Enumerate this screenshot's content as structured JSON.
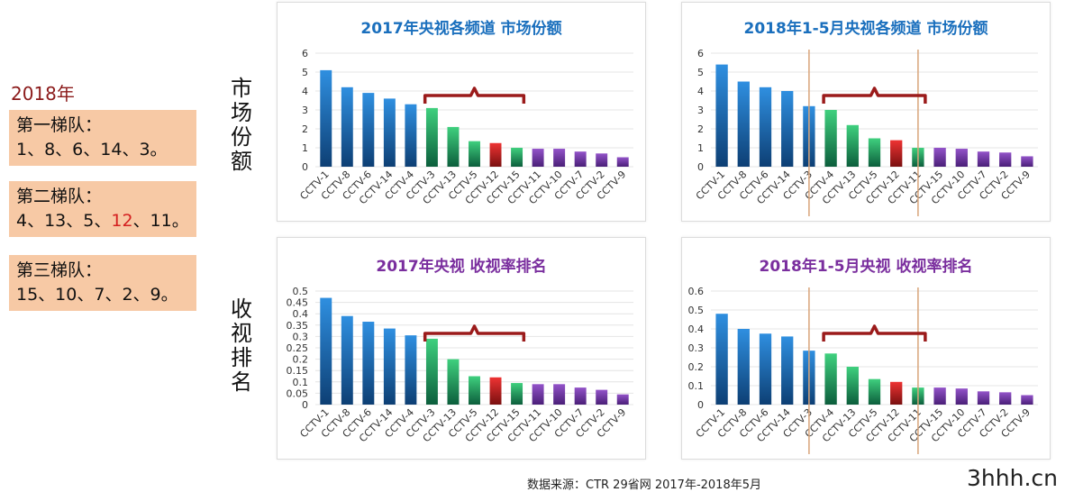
{
  "left": {
    "year": "2018年",
    "tiers": [
      {
        "title": "第一梯队：",
        "parts": [
          {
            "t": "1、8、6、14、3。"
          }
        ]
      },
      {
        "title": "第二梯队：",
        "parts": [
          {
            "t": "4、13、5、"
          },
          {
            "t": "12",
            "red": true
          },
          {
            "t": "、11。"
          }
        ]
      },
      {
        "title": "第三梯队：",
        "parts": [
          {
            "t": "15、10、7、2、9。"
          }
        ]
      }
    ],
    "row_labels": {
      "top": "市场份额",
      "bottom": "收视排名"
    }
  },
  "source_note": "数据来源：CTR 29省网  2017年-2018年5月",
  "watermark": "3hhh.cn",
  "colors": {
    "blue": "#1a6fbd",
    "green": "#27b36a",
    "red": "#d02424",
    "purple": "#7c3fb0",
    "bracket": "#9b1b1b",
    "divider": "#d9a57a",
    "title_blue": "#1a6fbd",
    "title_purple": "#7a2e9e"
  },
  "chart_data": [
    {
      "type": "bar",
      "title": "2017年央视各频道 市场份额",
      "title_color": "blue",
      "categories": [
        "CCTV-1",
        "CCTV-8",
        "CCTV-6",
        "CCTV-14",
        "CCTV-4",
        "CCTV-3",
        "CCTV-13",
        "CCTV-5",
        "CCTV-12",
        "CCTV-15",
        "CCTV-11",
        "CCTV-10",
        "CCTV-7",
        "CCTV-2",
        "CCTV-9"
      ],
      "values": [
        5.1,
        4.2,
        3.9,
        3.6,
        3.3,
        3.1,
        2.1,
        1.35,
        1.25,
        1.0,
        0.95,
        0.95,
        0.8,
        0.7,
        0.5
      ],
      "bar_colors": [
        "blue",
        "blue",
        "blue",
        "blue",
        "blue",
        "green",
        "green",
        "green",
        "red",
        "green",
        "purple",
        "purple",
        "purple",
        "purple",
        "purple"
      ],
      "yticks": [
        "0",
        "1",
        "2",
        "3",
        "4",
        "5",
        "6"
      ],
      "ylim": [
        0,
        6
      ],
      "bracket": [
        5,
        9
      ],
      "dividers": []
    },
    {
      "type": "bar",
      "title": "2018年1-5月央视各频道 市场份额",
      "title_color": "blue",
      "categories": [
        "CCTV-1",
        "CCTV-8",
        "CCTV-6",
        "CCTV-14",
        "CCTV-3",
        "CCTV-4",
        "CCTV-13",
        "CCTV-5",
        "CCTV-12",
        "CCTV-11",
        "CCTV-15",
        "CCTV-10",
        "CCTV-7",
        "CCTV-2",
        "CCTV-9"
      ],
      "values": [
        5.4,
        4.5,
        4.2,
        4.0,
        3.2,
        3.0,
        2.2,
        1.5,
        1.4,
        1.0,
        1.0,
        0.95,
        0.8,
        0.75,
        0.55
      ],
      "bar_colors": [
        "blue",
        "blue",
        "blue",
        "blue",
        "blue",
        "green",
        "green",
        "green",
        "red",
        "green",
        "purple",
        "purple",
        "purple",
        "purple",
        "purple"
      ],
      "yticks": [
        "0",
        "1",
        "2",
        "3",
        "4",
        "5",
        "6"
      ],
      "ylim": [
        0,
        6
      ],
      "bracket": [
        5,
        9
      ],
      "dividers": [
        4.5,
        9.5
      ]
    },
    {
      "type": "bar",
      "title": "2017年央视 收视率排名",
      "title_color": "purple",
      "categories": [
        "CCTV-1",
        "CCTV-8",
        "CCTV-6",
        "CCTV-14",
        "CCTV-4",
        "CCTV-3",
        "CCTV-13",
        "CCTV-5",
        "CCTV-12",
        "CCTV-15",
        "CCTV-11",
        "CCTV-10",
        "CCTV-7",
        "CCTV-2",
        "CCTV-9"
      ],
      "values": [
        0.47,
        0.39,
        0.365,
        0.335,
        0.305,
        0.29,
        0.2,
        0.125,
        0.12,
        0.095,
        0.09,
        0.09,
        0.075,
        0.065,
        0.045
      ],
      "bar_colors": [
        "blue",
        "blue",
        "blue",
        "blue",
        "blue",
        "green",
        "green",
        "green",
        "red",
        "green",
        "purple",
        "purple",
        "purple",
        "purple",
        "purple"
      ],
      "yticks": [
        "0",
        "0.05",
        "0.1",
        "0.15",
        "0.2",
        "0.25",
        "0.3",
        "0.35",
        "0.4",
        "0.45",
        "0.5"
      ],
      "ylim": [
        0,
        0.5
      ],
      "bracket": [
        5,
        9
      ],
      "dividers": []
    },
    {
      "type": "bar",
      "title": "2018年1-5月央视 收视率排名",
      "title_color": "purple",
      "categories": [
        "CCTV-1",
        "CCTV-8",
        "CCTV-6",
        "CCTV-14",
        "CCTV-3",
        "CCTV-4",
        "CCTV-13",
        "CCTV-5",
        "CCTV-12",
        "CCTV-11",
        "CCTV-15",
        "CCTV-10",
        "CCTV-7",
        "CCTV-2",
        "CCTV-9"
      ],
      "values": [
        0.48,
        0.4,
        0.375,
        0.36,
        0.285,
        0.27,
        0.2,
        0.135,
        0.12,
        0.09,
        0.09,
        0.085,
        0.07,
        0.065,
        0.05
      ],
      "bar_colors": [
        "blue",
        "blue",
        "blue",
        "blue",
        "blue",
        "green",
        "green",
        "green",
        "red",
        "green",
        "purple",
        "purple",
        "purple",
        "purple",
        "purple"
      ],
      "yticks": [
        "0",
        "0.1",
        "0.2",
        "0.3",
        "0.4",
        "0.5",
        "0.6"
      ],
      "ylim": [
        0,
        0.6
      ],
      "bracket": [
        5,
        9
      ],
      "dividers": [
        4.5,
        9.5
      ]
    }
  ]
}
